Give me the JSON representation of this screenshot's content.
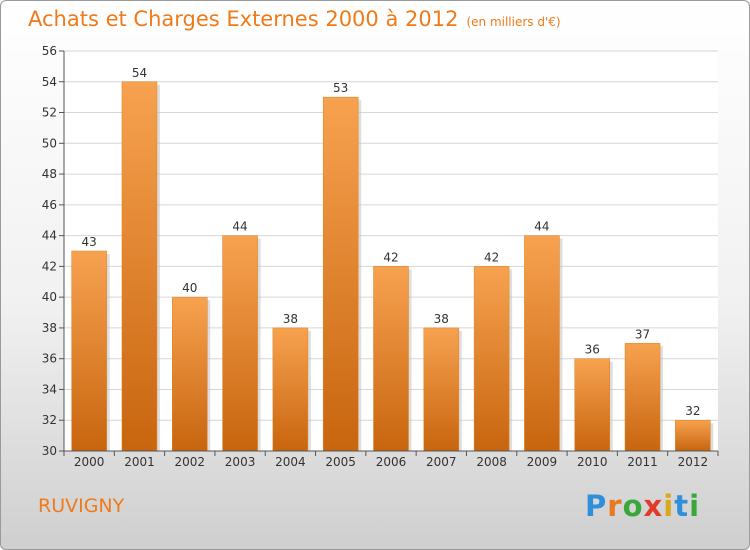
{
  "title": "Achats et Charges Externes 2000 à 2012",
  "unit": "(en milliers d'€)",
  "town": "RUVIGNY",
  "logo": {
    "letters": [
      "P",
      "r",
      "o",
      "x",
      "i",
      "t",
      "i"
    ],
    "colors": [
      "#2f8fd8",
      "#e8791f",
      "#3aa839",
      "#e23b2a",
      "#d9a81c",
      "#2f8fd8",
      "#3aa839"
    ]
  },
  "colors": {
    "bar": "#f0922e",
    "bar_dark": "#c8650f",
    "axis_text": "#333333",
    "accent": "#f07a1a"
  },
  "chart_data": {
    "type": "bar",
    "categories": [
      "2000",
      "2001",
      "2002",
      "2003",
      "2004",
      "2005",
      "2006",
      "2007",
      "2008",
      "2009",
      "2010",
      "2011",
      "2012"
    ],
    "values": [
      43,
      54,
      40,
      44,
      38,
      53,
      42,
      38,
      42,
      44,
      36,
      37,
      32
    ],
    "data_labels": [
      "43",
      "54",
      "40",
      "44",
      "38",
      "53",
      "42",
      "38",
      "42",
      "44",
      "36",
      "37",
      "32"
    ],
    "ylim": [
      30,
      56
    ],
    "yticks": [
      "30",
      "32",
      "34",
      "36",
      "38",
      "40",
      "42",
      "44",
      "46",
      "48",
      "50",
      "52",
      "54",
      "56"
    ],
    "grid": true,
    "legend": "none"
  }
}
